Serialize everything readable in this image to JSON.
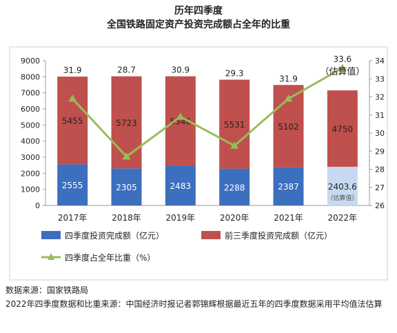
{
  "title_line1": "历年四季度",
  "title_line2": "全国铁路固定资产投资完成额占全年的比重",
  "chart_data": {
    "type": "bar",
    "stacked": true,
    "categories": [
      "2017年",
      "2018年",
      "2019年",
      "2020年",
      "2021年",
      "2022年"
    ],
    "series": [
      {
        "name": "四季度投资完成额（亿元）",
        "values": [
          2555,
          2305,
          2483,
          2288,
          2387,
          2403.6
        ],
        "color": "#3d6fbf",
        "labels": [
          "2555",
          "2305",
          "2483",
          "2288",
          "2387",
          "2403.6"
        ]
      },
      {
        "name": "前三季度投资完成额（亿元）",
        "values": [
          5455,
          5723,
          5546,
          5531,
          5102,
          4750
        ],
        "color": "#c0504d",
        "labels": [
          "5455",
          "5723",
          "5546",
          "5531",
          "5102",
          "4750"
        ]
      }
    ],
    "line_series": {
      "name": "四季度占全年比重（%）",
      "values": [
        31.9,
        28.7,
        30.9,
        29.3,
        31.9,
        33.6
      ],
      "labels": [
        "31.9",
        "28.7",
        "30.9",
        "29.3",
        "31.9",
        "33.6"
      ],
      "color": "#9bbb59",
      "axis": "right"
    },
    "estimate_color": "#c6d9f1",
    "estimate_label": "（估算值）",
    "estimate_small_label": "（估算值）",
    "y_left": {
      "min": 0,
      "max": 9000,
      "step": 1000,
      "ticks": [
        "0",
        "1000",
        "2000",
        "3000",
        "4000",
        "5000",
        "6000",
        "7000",
        "8000",
        "9000"
      ]
    },
    "y_right": {
      "min": 26,
      "max": 34,
      "step": 1,
      "ticks": [
        "26",
        "27",
        "28",
        "29",
        "30",
        "31",
        "32",
        "33",
        "34"
      ]
    },
    "legend_position": "bottom"
  },
  "notes": {
    "source": "数据来源：国家铁路局",
    "method": "2022年四季度数据和比重来源：中国经济时报记者郭锦辉根据最近五年的四季度数据采用平均值法估算"
  }
}
